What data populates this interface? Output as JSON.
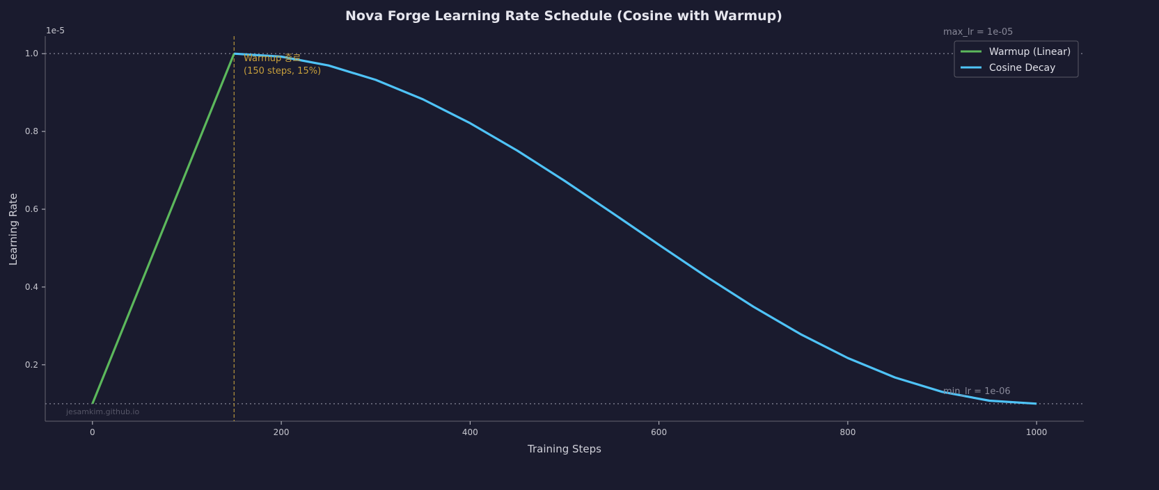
{
  "chart_data": {
    "type": "line",
    "title": "Nova Forge Learning Rate Schedule (Cosine with Warmup)",
    "xlabel": "Training Steps",
    "ylabel": "Learning Rate",
    "y_scale_label": "1e-5",
    "xlim": [
      -50,
      1050
    ],
    "ylim": [
      0.055,
      1.045
    ],
    "xticks": [
      0,
      200,
      400,
      600,
      800,
      1000
    ],
    "xtick_labels": [
      "0",
      "200",
      "400",
      "600",
      "800",
      "1000"
    ],
    "yticks": [
      0.2,
      0.4,
      0.6,
      0.8,
      1.0
    ],
    "ytick_labels": [
      "0.2",
      "0.4",
      "0.6",
      "0.8",
      "1.0"
    ],
    "grid": false,
    "legend_position": "top-right",
    "series": [
      {
        "name": "Warmup (Linear)",
        "color": "#5cb85c",
        "x": [
          0,
          150
        ],
        "y": [
          0.1,
          1.0
        ]
      },
      {
        "name": "Cosine Decay",
        "color": "#4fc3f7",
        "x": [
          150,
          200,
          250,
          300,
          350,
          400,
          450,
          500,
          550,
          600,
          650,
          700,
          750,
          800,
          850,
          900,
          950,
          1000
        ],
        "y": [
          1.0,
          0.9923,
          0.9696,
          0.9326,
          0.8826,
          0.8212,
          0.7506,
          0.6731,
          0.5915,
          0.5085,
          0.4269,
          0.3494,
          0.2788,
          0.2174,
          0.1674,
          0.1304,
          0.1077,
          0.1
        ]
      }
    ],
    "hlines": [
      {
        "y": 1.0,
        "label": "max_lr = 1e-05",
        "color": "#777788"
      },
      {
        "y": 0.1,
        "label": "min_lr = 1e-06",
        "color": "#777788"
      }
    ],
    "vline": {
      "x": 150,
      "color": "#b8963e",
      "label_line1": "Warmup 종료",
      "label_line2": "(150 steps, 15%)"
    },
    "watermark": "jesamkim.github.io"
  },
  "colors": {
    "background": "#1a1b2e",
    "axis": "#666670",
    "text": "#d0d0d8"
  }
}
